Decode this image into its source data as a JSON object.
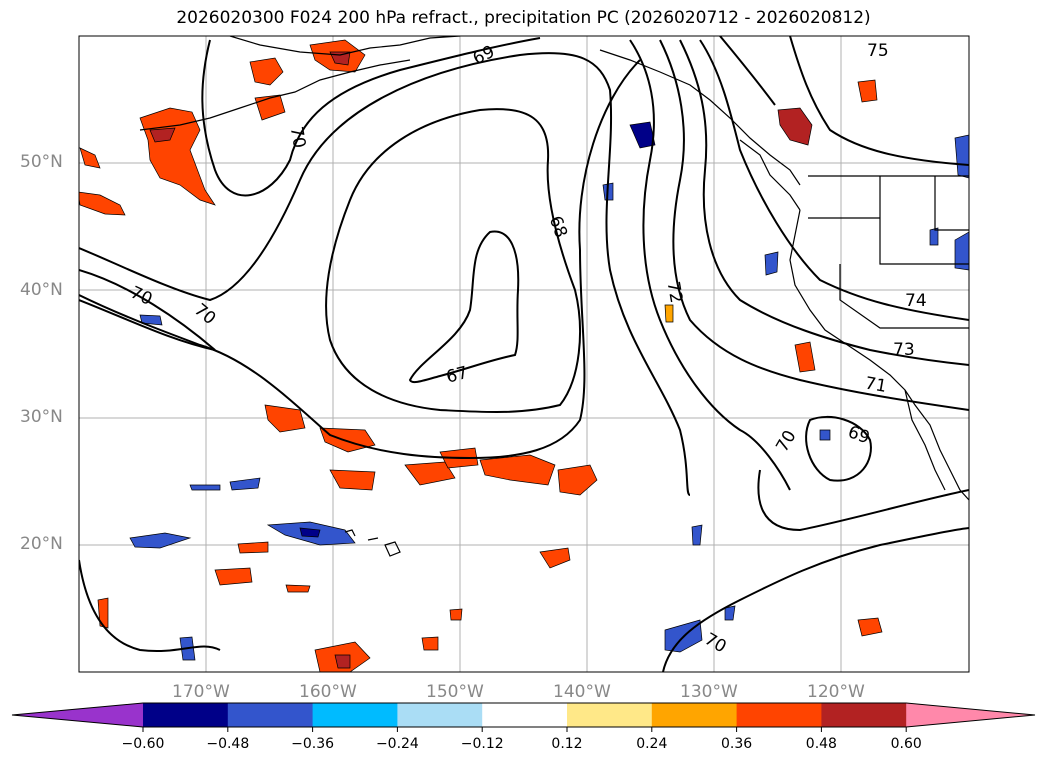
{
  "title": "2026020300 F024 200 hPa refract., precipitation PC (2026020712 - 2026020812)",
  "lat_labels": [
    "50°N",
    "40°N",
    "30°N",
    "20°N"
  ],
  "lon_labels": [
    "170°W",
    "160°W",
    "150°W",
    "140°W",
    "130°W",
    "120°W"
  ],
  "contour_labels": [
    "69",
    "70",
    "68",
    "70",
    "70",
    "67",
    "72",
    "75",
    "74",
    "73",
    "71",
    "70",
    "69",
    "70"
  ],
  "colorbar": {
    "ticks": [
      "−0.60",
      "−0.48",
      "−0.36",
      "−0.24",
      "−0.12",
      "0.12",
      "0.24",
      "0.36",
      "0.48",
      "0.60"
    ],
    "colors": [
      "#9933cc",
      "#000088",
      "#3355cc",
      "#00bbff",
      "#aaddf5",
      "#ffffff",
      "#ffe888",
      "#ffa500",
      "#ff4400",
      "#b22222",
      "#ff88aa"
    ]
  },
  "chart_data": {
    "type": "contour-map",
    "title": "2026020300 F024 200 hPa refract., precipitation PC (2026020712 - 2026020812)",
    "variable_contours": "200 hPa refractivity",
    "variable_fill": "precipitation PC",
    "contour_levels_labeled": [
      67,
      68,
      69,
      70,
      71,
      72,
      73,
      74,
      75
    ],
    "fill_levels": [
      -0.6,
      -0.48,
      -0.36,
      -0.24,
      -0.12,
      0.12,
      0.24,
      0.36,
      0.48,
      0.6
    ],
    "lon_range": [
      -180,
      -110
    ],
    "lat_range": [
      10,
      60
    ]
  }
}
